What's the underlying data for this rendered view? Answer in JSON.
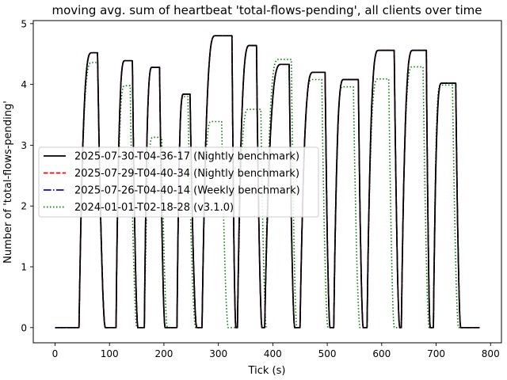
{
  "chart_data": {
    "type": "line",
    "title": "moving avg. sum of heartbeat 'total-flows-pending', all clients over time",
    "xlabel": "Tick (s)",
    "ylabel": "Number of 'total-flows-pending'",
    "xlim": [
      -40,
      820
    ],
    "ylim": [
      -0.25,
      5.05
    ],
    "xticks": [
      0,
      100,
      200,
      300,
      400,
      500,
      600,
      700,
      800
    ],
    "yticks": [
      0,
      1,
      2,
      3,
      4,
      5
    ],
    "legend_position": "center-left",
    "grid": false,
    "series": [
      {
        "name": "2025-07-30-T04-36-17 (Nightly benchmark)",
        "color": "#000000",
        "style": "solid",
        "cycles": [
          {
            "start": 44,
            "peak_start": 67,
            "level": 4.52,
            "end": 78,
            "drop_end": 92
          },
          {
            "start": 112,
            "peak_start": 128,
            "level": 4.39,
            "end": 142,
            "drop_end": 152
          },
          {
            "start": 164,
            "peak_start": 178,
            "level": 4.28,
            "end": 192,
            "drop_end": 202
          },
          {
            "start": 224,
            "peak_start": 236,
            "level": 3.84,
            "end": 248,
            "drop_end": 260
          },
          {
            "start": 270,
            "peak_start": 294,
            "level": 4.8,
            "end": 325,
            "drop_end": 332
          },
          {
            "start": 335,
            "peak_start": 357,
            "level": 4.64,
            "end": 370,
            "drop_end": 380
          },
          {
            "start": 385,
            "peak_start": 415,
            "level": 4.33,
            "end": 430,
            "drop_end": 440
          },
          {
            "start": 450,
            "peak_start": 474,
            "level": 4.2,
            "end": 496,
            "drop_end": 505
          },
          {
            "start": 512,
            "peak_start": 530,
            "level": 4.08,
            "end": 557,
            "drop_end": 566
          },
          {
            "start": 573,
            "peak_start": 594,
            "level": 4.56,
            "end": 623,
            "drop_end": 633
          },
          {
            "start": 636,
            "peak_start": 657,
            "level": 4.56,
            "end": 682,
            "drop_end": 689
          },
          {
            "start": 695,
            "peak_start": 710,
            "level": 4.02,
            "end": 736,
            "drop_end": 745
          }
        ]
      },
      {
        "name": "2025-07-29-T04-40-34 (Nightly benchmark)",
        "color": "#ff0000",
        "style": "dashed",
        "cycles": [
          {
            "start": 44,
            "peak_start": 67,
            "level": 4.52,
            "end": 78,
            "drop_end": 92
          },
          {
            "start": 112,
            "peak_start": 128,
            "level": 4.39,
            "end": 142,
            "drop_end": 152
          },
          {
            "start": 164,
            "peak_start": 178,
            "level": 4.28,
            "end": 192,
            "drop_end": 202
          },
          {
            "start": 224,
            "peak_start": 236,
            "level": 3.84,
            "end": 248,
            "drop_end": 260
          },
          {
            "start": 270,
            "peak_start": 294,
            "level": 4.8,
            "end": 325,
            "drop_end": 332
          },
          {
            "start": 335,
            "peak_start": 357,
            "level": 4.64,
            "end": 370,
            "drop_end": 380
          },
          {
            "start": 385,
            "peak_start": 415,
            "level": 4.33,
            "end": 430,
            "drop_end": 440
          },
          {
            "start": 450,
            "peak_start": 474,
            "level": 4.2,
            "end": 496,
            "drop_end": 505
          },
          {
            "start": 512,
            "peak_start": 530,
            "level": 4.08,
            "end": 557,
            "drop_end": 566
          },
          {
            "start": 573,
            "peak_start": 594,
            "level": 4.56,
            "end": 623,
            "drop_end": 633
          },
          {
            "start": 636,
            "peak_start": 657,
            "level": 4.56,
            "end": 682,
            "drop_end": 689
          },
          {
            "start": 695,
            "peak_start": 710,
            "level": 4.02,
            "end": 736,
            "drop_end": 745
          }
        ]
      },
      {
        "name": "2025-07-26-T04-40-14 (Weekly benchmark)",
        "color": "#0000ff",
        "style": "dashdot",
        "cycles": [
          {
            "start": 44,
            "peak_start": 67,
            "level": 4.52,
            "end": 78,
            "drop_end": 92
          },
          {
            "start": 112,
            "peak_start": 128,
            "level": 4.39,
            "end": 142,
            "drop_end": 152
          },
          {
            "start": 164,
            "peak_start": 178,
            "level": 4.28,
            "end": 192,
            "drop_end": 202
          },
          {
            "start": 224,
            "peak_start": 236,
            "level": 3.84,
            "end": 248,
            "drop_end": 260
          },
          {
            "start": 270,
            "peak_start": 294,
            "level": 4.8,
            "end": 325,
            "drop_end": 332
          },
          {
            "start": 335,
            "peak_start": 357,
            "level": 4.64,
            "end": 370,
            "drop_end": 380
          },
          {
            "start": 385,
            "peak_start": 415,
            "level": 4.33,
            "end": 430,
            "drop_end": 440
          },
          {
            "start": 450,
            "peak_start": 474,
            "level": 4.2,
            "end": 496,
            "drop_end": 505
          },
          {
            "start": 512,
            "peak_start": 530,
            "level": 4.08,
            "end": 557,
            "drop_end": 566
          },
          {
            "start": 573,
            "peak_start": 594,
            "level": 4.56,
            "end": 623,
            "drop_end": 633
          },
          {
            "start": 636,
            "peak_start": 657,
            "level": 4.56,
            "end": 682,
            "drop_end": 689
          },
          {
            "start": 695,
            "peak_start": 710,
            "level": 4.02,
            "end": 736,
            "drop_end": 745
          }
        ]
      },
      {
        "name": "2024-01-01-T02-18-28 (v3.1.0)",
        "color": "#008000",
        "style": "dotted",
        "cycles": [
          {
            "start": 44,
            "peak_start": 67,
            "level": 4.36,
            "end": 78,
            "drop_end": 92
          },
          {
            "start": 112,
            "peak_start": 128,
            "level": 3.98,
            "end": 138,
            "drop_end": 150
          },
          {
            "start": 164,
            "peak_start": 180,
            "level": 3.13,
            "end": 196,
            "drop_end": 206
          },
          {
            "start": 224,
            "peak_start": 236,
            "level": 3.8,
            "end": 244,
            "drop_end": 258
          },
          {
            "start": 270,
            "peak_start": 287,
            "level": 3.39,
            "end": 306,
            "drop_end": 318
          },
          {
            "start": 335,
            "peak_start": 355,
            "level": 3.59,
            "end": 378,
            "drop_end": 388
          },
          {
            "start": 385,
            "peak_start": 410,
            "level": 4.41,
            "end": 434,
            "drop_end": 444
          },
          {
            "start": 450,
            "peak_start": 472,
            "level": 4.08,
            "end": 490,
            "drop_end": 501
          },
          {
            "start": 512,
            "peak_start": 528,
            "level": 3.96,
            "end": 548,
            "drop_end": 560
          },
          {
            "start": 573,
            "peak_start": 593,
            "level": 4.09,
            "end": 613,
            "drop_end": 623
          },
          {
            "start": 636,
            "peak_start": 656,
            "level": 4.29,
            "end": 676,
            "drop_end": 687
          },
          {
            "start": 695,
            "peak_start": 708,
            "level": 3.99,
            "end": 730,
            "drop_end": 741
          }
        ]
      }
    ]
  }
}
